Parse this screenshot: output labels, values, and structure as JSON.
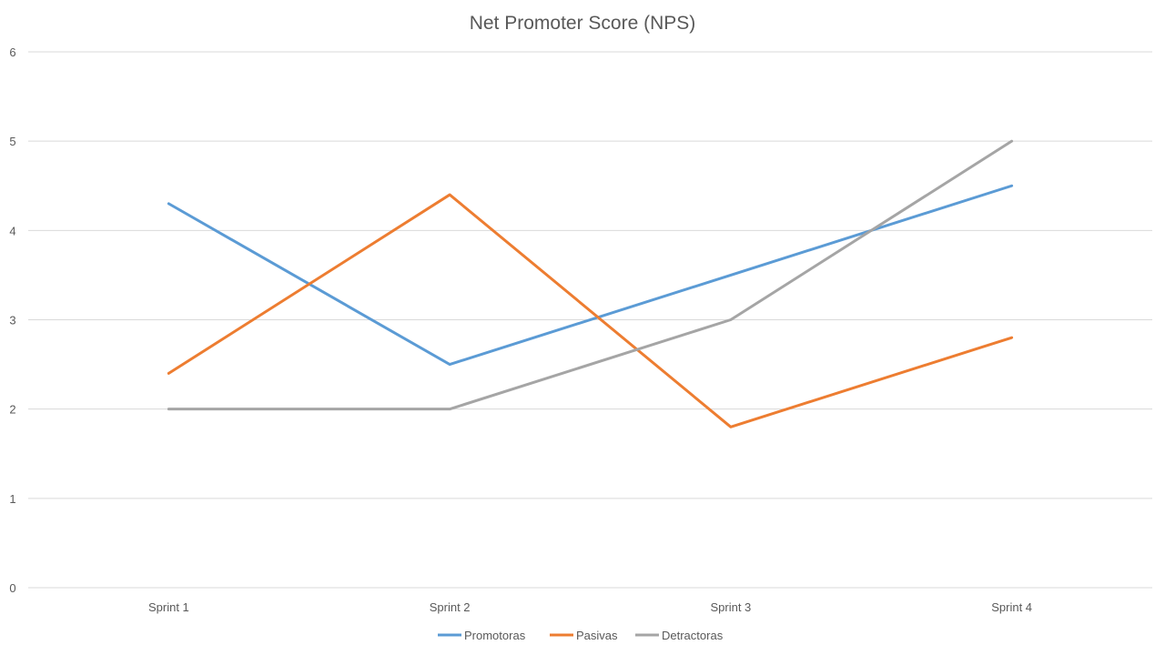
{
  "chart_data": {
    "type": "line",
    "title": "Net Promoter Score (NPS)",
    "categories": [
      "Sprint 1",
      "Sprint 2",
      "Sprint 3",
      "Sprint 4"
    ],
    "series": [
      {
        "name": "Promotoras",
        "values": [
          4.3,
          2.5,
          3.5,
          4.5
        ],
        "color": "#5b9bd5"
      },
      {
        "name": "Pasivas",
        "values": [
          2.4,
          4.4,
          1.8,
          2.8
        ],
        "color": "#ed7d31"
      },
      {
        "name": "Detractoras",
        "values": [
          2.0,
          2.0,
          3.0,
          5.0
        ],
        "color": "#a5a5a5"
      }
    ],
    "ylim": [
      0,
      6
    ],
    "yticks": [
      0,
      1,
      2,
      3,
      4,
      5,
      6
    ],
    "xlabel": "",
    "ylabel": "",
    "grid": true,
    "legend_position": "bottom"
  }
}
